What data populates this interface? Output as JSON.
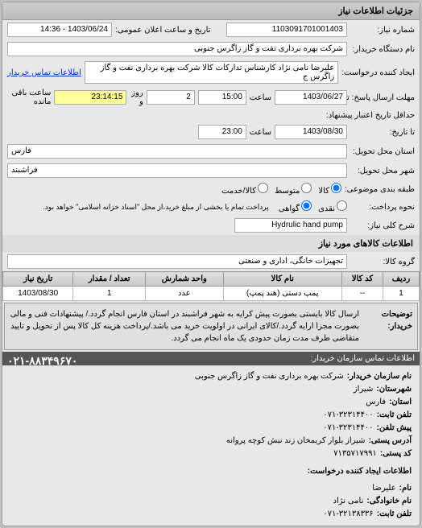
{
  "panel_title": "جزئیات اطلاعات نیاز",
  "fields": {
    "request_no_label": "شماره نیاز:",
    "request_no": "1103091701001403",
    "public_date_label": "تاریخ و ساعت اعلان عمومی:",
    "public_date": "1403/06/24 - 14:36",
    "org_label": "نام دستگاه خریدار:",
    "org": "شرکت بهره برداری نفت و گاز زاگرس جنوبی",
    "creator_label": "ایجاد کننده درخواست:",
    "creator": "علیرضا نامی نژاد کارشناس تدارکات کالا شرکت بهره برداری نفت و گاز زاگرس ج",
    "contact_link": "اطلاعات تماس خریدار",
    "deadline_label": "مهلت ارسال پاسخ: تا",
    "deadline_date": "1403/06/27",
    "deadline_time_label": "ساعت",
    "deadline_time": "15:00",
    "days_label": "روز و",
    "days": "2",
    "remain_time": "23:14:15",
    "remain_label": "ساعت باقی مانده",
    "extend_label": "حداقل تاریخ اعتبار پیشنهاد:",
    "extend_to_label": "تا تاریخ:",
    "extend_date": "1403/08/30",
    "extend_time_label": "ساعت",
    "extend_time": "23:00",
    "province_label": "استان محل تحویل:",
    "province": "فارس",
    "city_label": "شهر محل تحویل:",
    "city": "فراشبند",
    "pack_label": "طبقه بندی موضوعی:",
    "pack_kala": "کالا",
    "pack_group": "متوسط",
    "pack_pay": "کالا/خدمت",
    "accept_label": "نحوه پرداخت:",
    "accept_cash": "نقدی",
    "accept_pay": "گواهی",
    "accept_note": "پرداخت تمام یا بخشی از مبلغ خرید،از محل \"اسناد خزانه اسلامی\" خواهد بود.",
    "need_title_label": "شرح کلی نیاز:",
    "need_title": "Hydrulic hand pump",
    "items_section": "اطلاعات کالاهای مورد نیاز",
    "group_label": "گروه کالا:",
    "group": "تجهیزات خانگی، اداری و صنعتی"
  },
  "table": {
    "headers": [
      "ردیف",
      "کد کالا",
      "نام کالا",
      "واحد شمارش",
      "تعداد / مقدار",
      "تاریخ نیاز"
    ],
    "rows": [
      [
        "1",
        "--",
        "پمپ دستی (هند پمپ)",
        "عدد",
        "1",
        "1403/08/30"
      ]
    ]
  },
  "desc": {
    "label": "توضیحات خریدار:",
    "text": "ارسال کالا بایستی بصورت پیش کرایه به شهر فراشبند در استان فارس انجام گردد./ پیشنهادات فنی و مالی بصورت مجزا ارایه گردد./کالای ایرانی در اولویت خرید می باشد./پرداخت هزینه کل کالا پس از تحویل و تایید متقاضی طرف مدت زمان حدودی یک ماه انجام می گردد."
  },
  "contact": {
    "title": "اطلاعات تماس سازمان خریدار:",
    "lines": [
      {
        "k": "نام سازمان خریدار:",
        "v": "شرکت بهره برداری نفت و گاز زاگرس جنوبی"
      },
      {
        "k": "شهرستان:",
        "v": "شیراز"
      },
      {
        "k": "استان:",
        "v": "فارس"
      },
      {
        "k": "تلفن ثابت:",
        "v": "۰۷۱-۳۲۳۱۴۴۰۰"
      },
      {
        "k": "پیش تلفن:",
        "v": "۰۷۱-۳۲۳۱۴۴۰۰"
      },
      {
        "k": "آدرس پستی:",
        "v": "شیراز بلوار کریمخان زند نبش کوچه پروانه"
      },
      {
        "k": "کد پستی:",
        "v": "۷۱۳۵۷۱۷۹۹۱"
      }
    ],
    "title2": "اطلاعات ایجاد کننده درخواست:",
    "lines2": [
      {
        "k": "نام:",
        "v": "علیرضا"
      },
      {
        "k": "نام خانوادگی:",
        "v": "نامی نژاد"
      },
      {
        "k": "تلفن ثابت:",
        "v": "۰۷۱-۳۲۱۳۸۳۳۶"
      }
    ],
    "phone_big": "۰۲۱-۸۸۳۴۹۶۷۰"
  }
}
